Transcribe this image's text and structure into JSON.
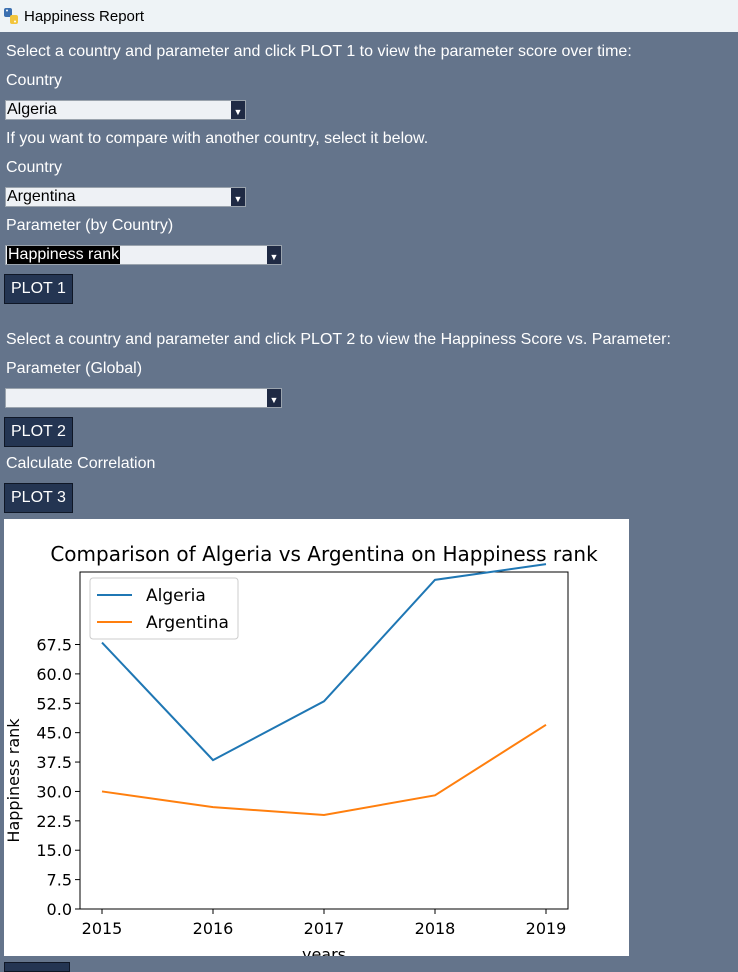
{
  "window": {
    "title": "Happiness Report"
  },
  "section1": {
    "instruction": "Select a country and parameter and click PLOT 1 to view the parameter score over time:",
    "country_label": "Country",
    "country_value": "Algeria",
    "compare_text": "If you want to compare with another country, select it below.",
    "country2_label": "Country",
    "country2_value": "Argentina",
    "param_label": "Parameter (by Country)",
    "param_value": "Happiness rank",
    "plot_button": "PLOT 1"
  },
  "section2": {
    "instruction": "Select a country and parameter and click PLOT 2 to view the Happiness Score vs. Parameter:",
    "param_label": "Parameter (Global)",
    "param_value": "",
    "plot_button": "PLOT 2",
    "correlation_label": "Calculate Correlation",
    "plot3_button": "PLOT 3"
  },
  "chart_data": {
    "type": "line",
    "title": "Comparison of Algeria vs Argentina on Happiness rank",
    "xlabel": "years",
    "ylabel": "Happiness rank",
    "x": [
      "2015",
      "2016",
      "2017",
      "2018",
      "2019"
    ],
    "y_ticks": [
      "0.0",
      "7.5",
      "15.0",
      "22.5",
      "30.0",
      "37.5",
      "45.0",
      "52.5",
      "60.0",
      "67.5"
    ],
    "ylim": [
      0,
      86
    ],
    "legend_position": "top-left",
    "series": [
      {
        "name": "Algeria",
        "color": "#1f77b4",
        "values": [
          68,
          38,
          53,
          84,
          88
        ]
      },
      {
        "name": "Argentina",
        "color": "#ff7f0e",
        "values": [
          30,
          26,
          24,
          29,
          47
        ]
      }
    ]
  }
}
